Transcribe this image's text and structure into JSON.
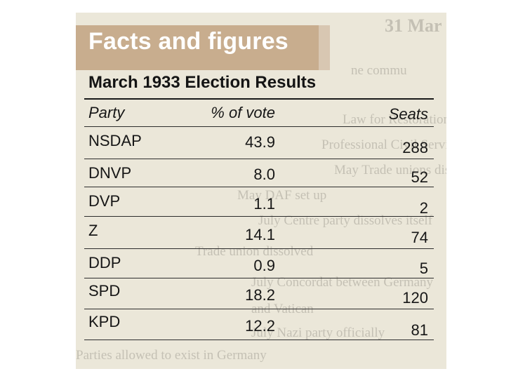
{
  "header": {
    "title": "Facts and figures"
  },
  "table": {
    "title": "March 1933 Election Results",
    "columns": {
      "party": "Party",
      "vote": "% of vote",
      "seats": "Seats"
    },
    "rows": [
      {
        "party": "NSDAP",
        "vote": "43.9",
        "seats": "288"
      },
      {
        "party": "DNVP",
        "vote": "8.0",
        "seats": "52"
      },
      {
        "party": "DVP",
        "vote": "1.1",
        "seats": "2"
      },
      {
        "party": "Z",
        "vote": "14.1",
        "seats": "74"
      },
      {
        "party": "DDP",
        "vote": "0.9",
        "seats": "5"
      },
      {
        "party": "SPD",
        "vote": "18.2",
        "seats": "120"
      },
      {
        "party": "KPD",
        "vote": "12.2",
        "seats": "81"
      }
    ]
  }
}
